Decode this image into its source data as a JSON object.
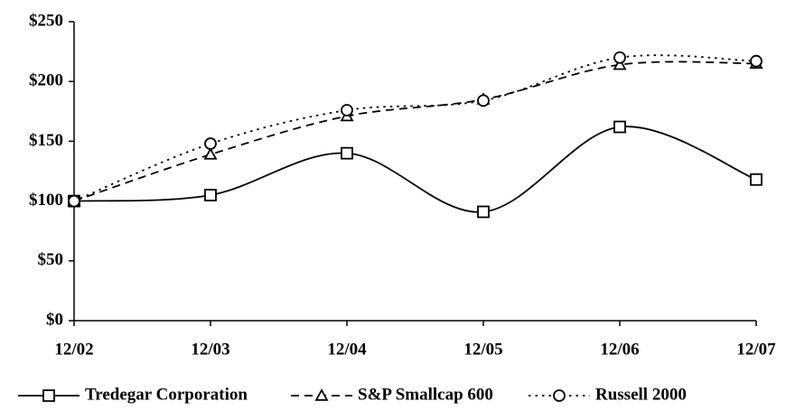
{
  "chart_data": {
    "type": "line",
    "smooth": true,
    "categories": [
      "12/02",
      "12/03",
      "12/04",
      "12/05",
      "12/06",
      "12/07"
    ],
    "series": [
      {
        "name": "Tredegar Corporation",
        "color": "#000000",
        "line_style": "solid",
        "marker": "square",
        "values": [
          100,
          105,
          140,
          91,
          162,
          118
        ]
      },
      {
        "name": "S&P Smallcap 600",
        "color": "#000000",
        "line_style": "dashed",
        "marker": "triangle",
        "values": [
          100,
          139,
          171,
          185,
          214,
          215
        ]
      },
      {
        "name": "Russell 2000",
        "color": "#000000",
        "line_style": "dotted",
        "marker": "circle",
        "values": [
          100,
          148,
          176,
          184,
          220,
          217
        ]
      }
    ],
    "ylim": [
      0,
      250
    ],
    "yticks": [
      {
        "value": 0,
        "label": "$0"
      },
      {
        "value": 50,
        "label": "$50"
      },
      {
        "value": 100,
        "label": "$100"
      },
      {
        "value": 150,
        "label": "$150"
      },
      {
        "value": 200,
        "label": "$200"
      },
      {
        "value": 250,
        "label": "$250"
      }
    ],
    "grid": false,
    "legend": "bottom"
  }
}
